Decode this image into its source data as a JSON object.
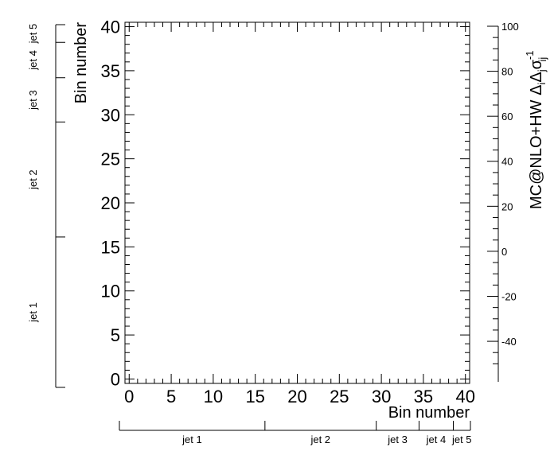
{
  "chart_data": {
    "type": "heatmap",
    "title": "",
    "xlabel": "Bin number",
    "ylabel": "Bin number",
    "zlabel": "MC@NLO+HW  Δ_iΔ_jσ_ij^-1",
    "zlabel_main": "MC@NLO+HW ",
    "zlabel_delta": "Δ",
    "zlabel_sub_i": "i",
    "zlabel_sigma": "σ",
    "zlabel_sub_ij": "ij",
    "zlabel_sup": "-1",
    "xlim": [
      -0.5,
      40.5
    ],
    "ylim": [
      -0.5,
      40.5
    ],
    "xticks": [
      "0",
      "5",
      "10",
      "15",
      "20",
      "25",
      "30",
      "35",
      "40"
    ],
    "yticks": [
      "0",
      "5",
      "10",
      "15",
      "20",
      "25",
      "30",
      "35",
      "40"
    ],
    "zlim": [
      -58,
      100
    ],
    "zticks": [
      "-40",
      "-20",
      "0",
      "20",
      "40",
      "60",
      "80",
      "100"
    ],
    "jet_groups": [
      {
        "label": "jet 1",
        "start": -0.5,
        "end": 16.5
      },
      {
        "label": "jet 2",
        "start": 16.5,
        "end": 29.5
      },
      {
        "label": "jet 3",
        "start": 29.5,
        "end": 34.5
      },
      {
        "label": "jet 4",
        "start": 34.5,
        "end": 38.5
      },
      {
        "label": "jet 5",
        "start": 38.5,
        "end": 40.5
      }
    ],
    "cells": []
  }
}
